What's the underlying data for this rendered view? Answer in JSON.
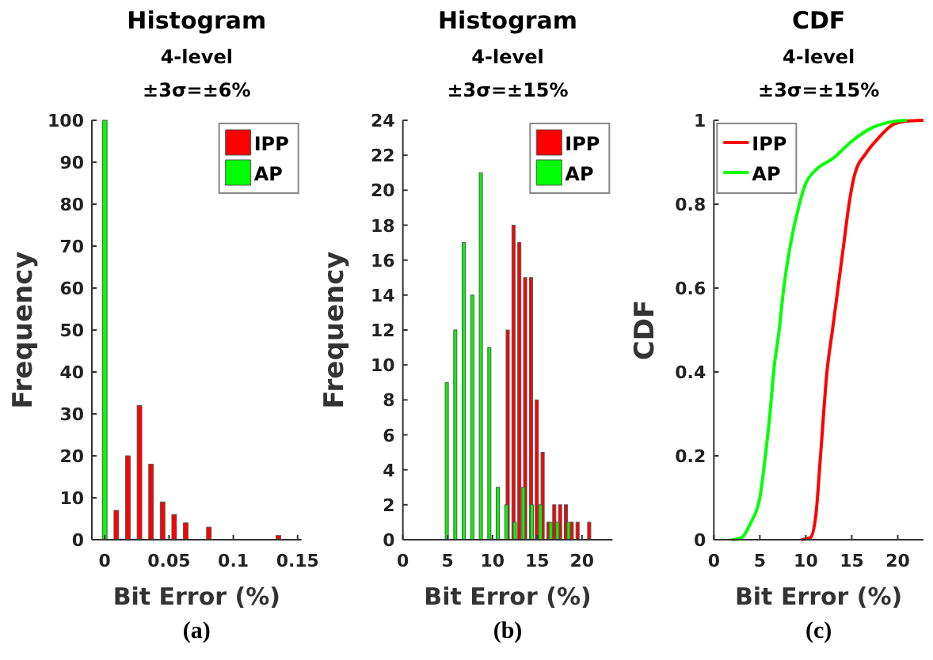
{
  "chart_data": [
    {
      "type": "bar",
      "title": "Histogram",
      "subtitle": "4-level\n±3σ=±6%",
      "xlabel": "Bit Error (%)",
      "ylabel": "Frequency",
      "annotations": [
        "(a)"
      ],
      "xlim": [
        -0.01,
        0.153
      ],
      "xticks": [
        0,
        0.05,
        0.1,
        0.15
      ],
      "ylim": [
        0,
        100
      ],
      "yticks": [
        0,
        10,
        20,
        30,
        40,
        50,
        60,
        70,
        80,
        90,
        100
      ],
      "legend": "top right",
      "grid": false,
      "series": [
        {
          "name": "IPP",
          "color": "#ff0000",
          "x": [
            0.009,
            0.018,
            0.027,
            0.036,
            0.045,
            0.054,
            0.063,
            0.081,
            0.135
          ],
          "values": [
            7,
            20,
            32,
            18,
            9,
            6,
            4,
            3,
            1
          ]
        },
        {
          "name": "AP",
          "color": "#00ff00",
          "x": [
            0
          ],
          "values": [
            100
          ]
        }
      ]
    },
    {
      "type": "bar",
      "title": "Histogram",
      "subtitle": "4-level\n±3σ=±15%",
      "xlabel": "Bit Error (%)",
      "ylabel": "Frequency",
      "annotations": [
        "(b)"
      ],
      "xlim": [
        0,
        23.4
      ],
      "xticks": [
        0,
        5,
        10,
        15,
        20
      ],
      "ylim": [
        0,
        24
      ],
      "yticks": [
        0,
        2,
        4,
        6,
        8,
        10,
        12,
        14,
        16,
        18,
        20,
        22,
        24
      ],
      "legend": "top right",
      "grid": false,
      "series": [
        {
          "name": "IPP",
          "color": "#ff0000",
          "x": [
            11.7,
            12.35,
            13.0,
            13.65,
            14.3,
            14.95,
            15.6,
            16.25,
            16.9,
            17.55,
            18.2,
            18.85,
            19.5,
            20.8
          ],
          "values": [
            12,
            18,
            17,
            15,
            15,
            8,
            5,
            1,
            2,
            2,
            2,
            1,
            1,
            1
          ]
        },
        {
          "name": "AP",
          "color": "#00ff00",
          "x": [
            4.9,
            5.85,
            6.8,
            7.75,
            8.7,
            9.65,
            10.6,
            11.55,
            12.5,
            13.45,
            14.4,
            15.35,
            16.5,
            17.25,
            18.5
          ],
          "values": [
            9,
            12,
            17,
            14,
            21,
            11,
            3,
            2,
            1,
            3,
            2,
            2,
            1,
            1,
            1
          ]
        }
      ]
    },
    {
      "type": "line",
      "title": "CDF",
      "subtitle": "4-level\n±3σ=±15%",
      "xlabel": "Bit Error (%)",
      "ylabel": "CDF",
      "annotations": [
        "(c)"
      ],
      "xlim": [
        0,
        22.8
      ],
      "xticks": [
        0,
        5,
        10,
        15,
        20
      ],
      "ylim": [
        0,
        1
      ],
      "yticks": [
        0,
        0.2,
        0.4,
        0.6,
        0.8,
        1
      ],
      "legend": "top left",
      "grid": false,
      "marker": "none",
      "series": [
        {
          "name": "IPP",
          "color": "#ff0000",
          "x": [
            9.5,
            10.5,
            11.1,
            11.6,
            12.3,
            12.9,
            13.5,
            14.1,
            14.7,
            15.3,
            16.5,
            18,
            19.5,
            21,
            22.8
          ],
          "values": [
            0,
            0.005,
            0.06,
            0.2,
            0.4,
            0.5,
            0.6,
            0.7,
            0.8,
            0.87,
            0.92,
            0.96,
            0.99,
            0.998,
            1
          ]
        },
        {
          "name": "AP",
          "color": "#00ff00",
          "x": [
            2,
            3,
            4,
            5,
            5.6,
            6.1,
            6.5,
            7.1,
            7.6,
            8.3,
            9.3,
            10,
            11,
            13,
            15,
            17,
            19,
            21
          ],
          "values": [
            0,
            0.005,
            0.04,
            0.1,
            0.2,
            0.3,
            0.4,
            0.5,
            0.6,
            0.7,
            0.8,
            0.85,
            0.88,
            0.91,
            0.95,
            0.98,
            0.995,
            1
          ]
        }
      ]
    }
  ]
}
